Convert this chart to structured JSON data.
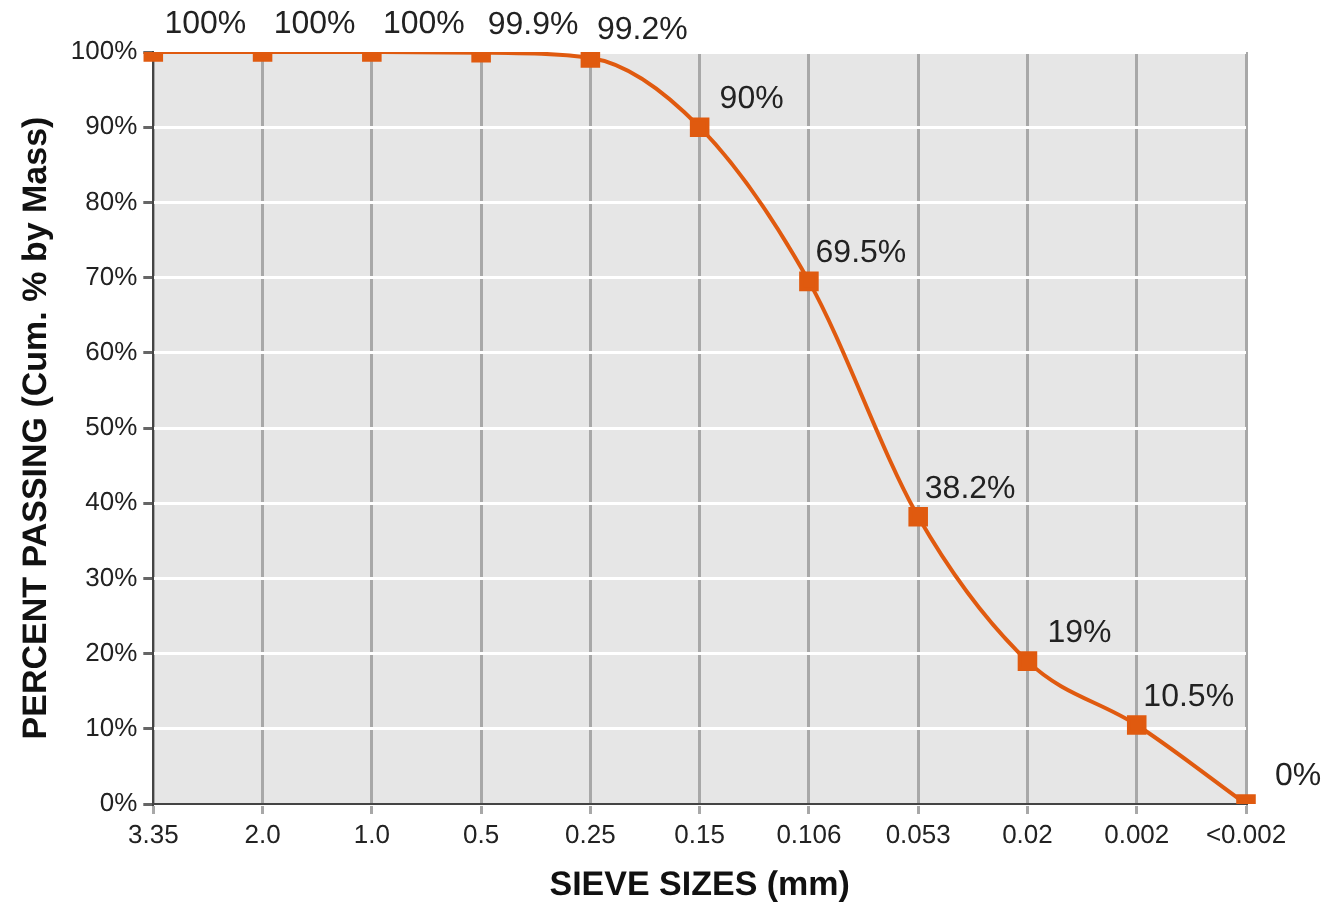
{
  "chart_data": {
    "type": "line",
    "xlabel": "SIEVE SIZES (mm)",
    "ylabel": "PERCENT PASSING (Cum. % by Mass)",
    "categories": [
      "3.35",
      "2.0",
      "1.0",
      "0.5",
      "0.25",
      "0.15",
      "0.106",
      "0.053",
      "0.02",
      "0.002",
      "<0.002"
    ],
    "series": [
      {
        "color": "#e05a0f",
        "values": [
          100,
          100,
          100,
          99.9,
          99.2,
          90,
          69.5,
          38.2,
          19,
          10.5,
          0
        ],
        "value_labels": [
          "100%",
          "100%",
          "100%",
          "99.9%",
          "99.2%",
          "90%",
          "69.5%",
          "38.2%",
          "19%",
          "10.5%",
          "0%"
        ]
      }
    ],
    "ylim": [
      0,
      100
    ],
    "yticks": [
      {
        "value": 0,
        "label": "0%"
      },
      {
        "value": 10,
        "label": "10%"
      },
      {
        "value": 20,
        "label": "20%"
      },
      {
        "value": 30,
        "label": "30%"
      },
      {
        "value": 40,
        "label": "40%"
      },
      {
        "value": 50,
        "label": "50%"
      },
      {
        "value": 60,
        "label": "60%"
      },
      {
        "value": 70,
        "label": "70%"
      },
      {
        "value": 80,
        "label": "80%"
      },
      {
        "value": 90,
        "label": "90%"
      },
      {
        "value": 100,
        "label": "100%"
      }
    ],
    "grid": true,
    "legend": false,
    "marker": "square",
    "line_style": "solid"
  }
}
